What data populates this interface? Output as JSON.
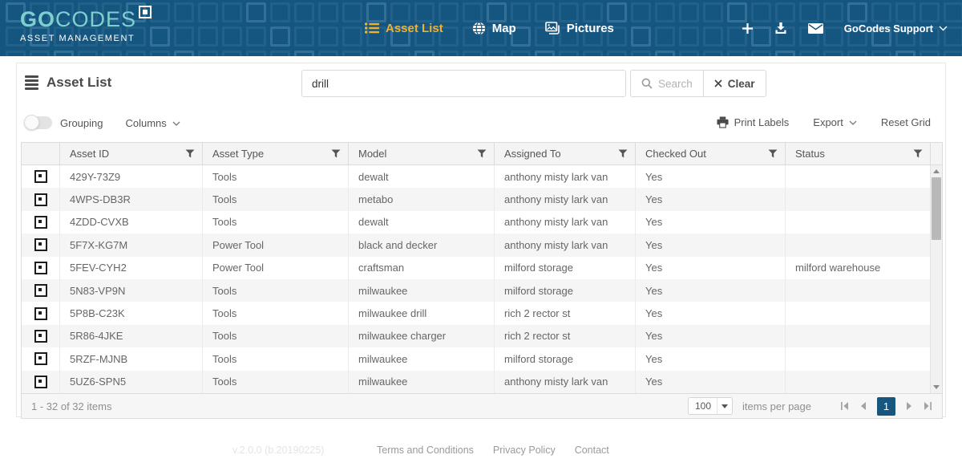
{
  "navbar": {
    "brand_bold": "GO",
    "brand_rest": "CODES",
    "tagline": "ASSET MANAGEMENT",
    "items": [
      {
        "label": "Asset List",
        "icon": "list-icon",
        "active": true
      },
      {
        "label": "Map",
        "icon": "globe-icon",
        "active": false
      },
      {
        "label": "Pictures",
        "icon": "pictures-icon",
        "active": false
      }
    ],
    "action_icons": [
      "plus-icon",
      "download-icon",
      "mail-icon"
    ],
    "account_label": "GoCodes Support"
  },
  "header": {
    "title": "Asset List",
    "search_value": "drill",
    "search_button": "Search",
    "clear_button": "Clear"
  },
  "toolbar": {
    "grouping": "Grouping",
    "columns": "Columns",
    "print_labels": "Print Labels",
    "export": "Export",
    "reset_grid": "Reset Grid"
  },
  "table": {
    "columns": [
      "Asset ID",
      "Asset Type",
      "Model",
      "Assigned To",
      "Checked Out",
      "Status"
    ],
    "rows": [
      {
        "asset_id": "429Y-73Z9",
        "asset_type": "Tools",
        "model": "dewalt",
        "assigned_to": "anthony misty lark van",
        "checked_out": "Yes",
        "status": ""
      },
      {
        "asset_id": "4WPS-DB3R",
        "asset_type": "Tools",
        "model": "metabo",
        "assigned_to": "anthony misty lark van",
        "checked_out": "Yes",
        "status": ""
      },
      {
        "asset_id": "4ZDD-CVXB",
        "asset_type": "Tools",
        "model": "dewalt",
        "assigned_to": "anthony misty lark van",
        "checked_out": "Yes",
        "status": ""
      },
      {
        "asset_id": "5F7X-KG7M",
        "asset_type": "Power Tool",
        "model": "black and decker",
        "assigned_to": "anthony misty lark van",
        "checked_out": "Yes",
        "status": ""
      },
      {
        "asset_id": "5FEV-CYH2",
        "asset_type": "Power Tool",
        "model": "craftsman",
        "assigned_to": "milford storage",
        "checked_out": "Yes",
        "status": "milford warehouse"
      },
      {
        "asset_id": "5N83-VP9N",
        "asset_type": "Tools",
        "model": "milwaukee",
        "assigned_to": "milford storage",
        "checked_out": "Yes",
        "status": ""
      },
      {
        "asset_id": "5P8B-C23K",
        "asset_type": "Tools",
        "model": "milwaukee drill",
        "assigned_to": "rich 2 rector st",
        "checked_out": "Yes",
        "status": ""
      },
      {
        "asset_id": "5R86-4JKE",
        "asset_type": "Tools",
        "model": "milwaukee charger",
        "assigned_to": "rich 2 rector st",
        "checked_out": "Yes",
        "status": ""
      },
      {
        "asset_id": "5RZF-MJNB",
        "asset_type": "Tools",
        "model": "milwaukee",
        "assigned_to": "milford storage",
        "checked_out": "Yes",
        "status": ""
      },
      {
        "asset_id": "5UZ6-SPN5",
        "asset_type": "Tools",
        "model": "milwaukee",
        "assigned_to": "anthony misty lark van",
        "checked_out": "Yes",
        "status": ""
      }
    ]
  },
  "pager": {
    "summary": "1 - 32 of 32 items",
    "page_size": "100",
    "items_per_page": "items per page",
    "current_page": "1"
  },
  "footer": {
    "version": "v.2.0.0 (b.20190225)",
    "links": [
      "Terms and Conditions",
      "Privacy Policy",
      "Contact"
    ]
  },
  "colors": {
    "navbar_blue": "#155680",
    "accent_gold": "#efb12d",
    "logo_teal": "#7ed0cf",
    "active_page_blue": "#17567f"
  }
}
